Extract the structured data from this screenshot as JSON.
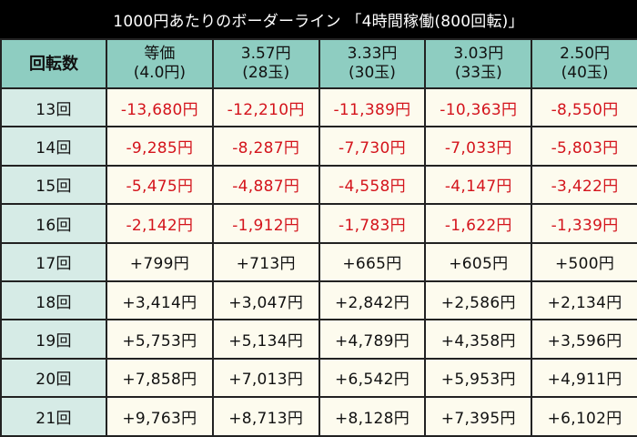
{
  "title": "1000円あたりのボーダーライン 「4時間稼働(800回転)」",
  "colors": {
    "title_bg": "#000000",
    "header_bg": "#8ecdc1",
    "spin_col_bg": "#d6ebe6",
    "cell_bg": "#fdfbee",
    "negative": "#d4141c",
    "positive": "#111111"
  },
  "table": {
    "row_header_label": "回転数",
    "columns": [
      {
        "line1": "等価",
        "line2": "(4.0円)"
      },
      {
        "line1": "3.57円",
        "line2": "(28玉)"
      },
      {
        "line1": "3.33円",
        "line2": "(30玉)"
      },
      {
        "line1": "3.03円",
        "line2": "(33玉)"
      },
      {
        "line1": "2.50円",
        "line2": "(40玉)"
      }
    ],
    "rows": [
      {
        "spin": "13回",
        "values": [
          "-13,680円",
          "-12,210円",
          "-11,389円",
          "-10,363円",
          "-8,550円"
        ]
      },
      {
        "spin": "14回",
        "values": [
          "-9,285円",
          "-8,287円",
          "-7,730円",
          "-7,033円",
          "-5,803円"
        ]
      },
      {
        "spin": "15回",
        "values": [
          "-5,475円",
          "-4,887円",
          "-4,558円",
          "-4,147円",
          "-3,422円"
        ]
      },
      {
        "spin": "16回",
        "values": [
          "-2,142円",
          "-1,912円",
          "-1,783円",
          "-1,622円",
          "-1,339円"
        ]
      },
      {
        "spin": "17回",
        "values": [
          "+799円",
          "+713円",
          "+665円",
          "+605円",
          "+500円"
        ]
      },
      {
        "spin": "18回",
        "values": [
          "+3,414円",
          "+3,047円",
          "+2,842円",
          "+2,586円",
          "+2,134円"
        ]
      },
      {
        "spin": "19回",
        "values": [
          "+5,753円",
          "+5,134円",
          "+4,789円",
          "+4,358円",
          "+3,596円"
        ]
      },
      {
        "spin": "20回",
        "values": [
          "+7,858円",
          "+7,013円",
          "+6,542円",
          "+5,953円",
          "+4,911円"
        ]
      },
      {
        "spin": "21回",
        "values": [
          "+9,763円",
          "+8,713円",
          "+8,128円",
          "+7,395円",
          "+6,102円"
        ]
      }
    ]
  }
}
